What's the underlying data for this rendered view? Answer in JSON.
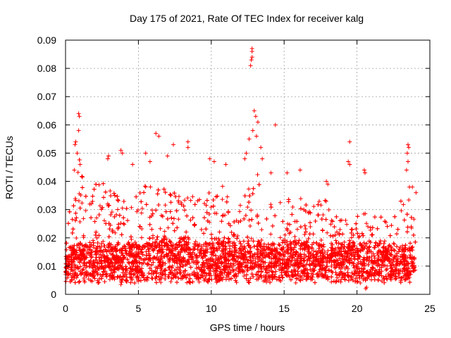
{
  "chart_data": {
    "type": "scatter",
    "title": "Day 175 of 2021, Rate Of TEC Index for receiver kalg",
    "xlabel": "GPS time / hours",
    "ylabel": "ROTI / TECUs",
    "xlim": [
      0,
      25
    ],
    "ylim": [
      0,
      0.09
    ],
    "xticks": [
      0,
      5,
      10,
      15,
      20,
      25
    ],
    "xtick_labels": [
      "0",
      "5",
      "10",
      "15",
      "20",
      "25"
    ],
    "yticks": [
      0,
      0.01,
      0.02,
      0.03,
      0.04,
      0.05,
      0.06,
      0.07,
      0.08,
      0.09
    ],
    "ytick_labels": [
      "0",
      "0.01",
      "0.02",
      "0.03",
      "0.04",
      "0.05",
      "0.06",
      "0.07",
      "0.08",
      "0.09"
    ],
    "grid": true,
    "marker": "+",
    "color": "#ff0000",
    "density_profile": [
      {
        "x": 0.0,
        "base": 0.009,
        "peak": 0.022
      },
      {
        "x": 0.5,
        "base": 0.01,
        "peak": 0.036
      },
      {
        "x": 0.9,
        "base": 0.011,
        "peak": 0.048
      },
      {
        "x": 1.5,
        "base": 0.011,
        "peak": 0.034
      },
      {
        "x": 2.5,
        "base": 0.011,
        "peak": 0.04
      },
      {
        "x": 3.5,
        "base": 0.011,
        "peak": 0.036
      },
      {
        "x": 4.5,
        "base": 0.011,
        "peak": 0.034
      },
      {
        "x": 5.5,
        "base": 0.012,
        "peak": 0.04
      },
      {
        "x": 6.5,
        "base": 0.012,
        "peak": 0.038
      },
      {
        "x": 7.5,
        "base": 0.012,
        "peak": 0.036
      },
      {
        "x": 8.5,
        "base": 0.012,
        "peak": 0.034
      },
      {
        "x": 9.5,
        "base": 0.011,
        "peak": 0.032
      },
      {
        "x": 10.5,
        "base": 0.012,
        "peak": 0.038
      },
      {
        "x": 11.5,
        "base": 0.012,
        "peak": 0.03
      },
      {
        "x": 12.5,
        "base": 0.012,
        "peak": 0.04
      },
      {
        "x": 13.0,
        "base": 0.012,
        "peak": 0.044
      },
      {
        "x": 14.0,
        "base": 0.011,
        "peak": 0.032
      },
      {
        "x": 15.0,
        "base": 0.012,
        "peak": 0.034
      },
      {
        "x": 16.0,
        "base": 0.012,
        "peak": 0.036
      },
      {
        "x": 17.0,
        "base": 0.011,
        "peak": 0.03
      },
      {
        "x": 18.0,
        "base": 0.011,
        "peak": 0.034
      },
      {
        "x": 19.0,
        "base": 0.011,
        "peak": 0.026
      },
      {
        "x": 20.0,
        "base": 0.011,
        "peak": 0.03
      },
      {
        "x": 21.0,
        "base": 0.011,
        "peak": 0.028
      },
      {
        "x": 22.0,
        "base": 0.01,
        "peak": 0.028
      },
      {
        "x": 23.0,
        "base": 0.01,
        "peak": 0.03
      },
      {
        "x": 23.6,
        "base": 0.01,
        "peak": 0.034
      },
      {
        "x": 24.0,
        "base": 0.01,
        "peak": 0.03
      }
    ],
    "notable_points": [
      {
        "x": 12.8,
        "y": 0.087
      },
      {
        "x": 12.8,
        "y": 0.086
      },
      {
        "x": 12.8,
        "y": 0.084
      },
      {
        "x": 12.75,
        "y": 0.083
      },
      {
        "x": 12.7,
        "y": 0.081
      },
      {
        "x": 12.95,
        "y": 0.065
      },
      {
        "x": 13.05,
        "y": 0.063
      },
      {
        "x": 13.2,
        "y": 0.061
      },
      {
        "x": 12.6,
        "y": 0.055
      },
      {
        "x": 12.85,
        "y": 0.058
      },
      {
        "x": 13.1,
        "y": 0.056
      },
      {
        "x": 14.4,
        "y": 0.06
      },
      {
        "x": 0.9,
        "y": 0.064
      },
      {
        "x": 0.95,
        "y": 0.063
      },
      {
        "x": 0.9,
        "y": 0.058
      },
      {
        "x": 0.7,
        "y": 0.054
      },
      {
        "x": 0.65,
        "y": 0.053
      },
      {
        "x": 0.8,
        "y": 0.05
      },
      {
        "x": 1.0,
        "y": 0.046
      },
      {
        "x": 0.6,
        "y": 0.044
      },
      {
        "x": 6.2,
        "y": 0.057
      },
      {
        "x": 6.4,
        "y": 0.056
      },
      {
        "x": 5.5,
        "y": 0.05
      },
      {
        "x": 5.8,
        "y": 0.047
      },
      {
        "x": 7.4,
        "y": 0.053
      },
      {
        "x": 8.4,
        "y": 0.054
      },
      {
        "x": 8.4,
        "y": 0.052
      },
      {
        "x": 7.0,
        "y": 0.049
      },
      {
        "x": 3.8,
        "y": 0.051
      },
      {
        "x": 3.9,
        "y": 0.05
      },
      {
        "x": 2.9,
        "y": 0.048
      },
      {
        "x": 2.95,
        "y": 0.049
      },
      {
        "x": 4.6,
        "y": 0.046
      },
      {
        "x": 9.9,
        "y": 0.048
      },
      {
        "x": 10.2,
        "y": 0.047
      },
      {
        "x": 11.0,
        "y": 0.046
      },
      {
        "x": 12.3,
        "y": 0.048
      },
      {
        "x": 12.4,
        "y": 0.05
      },
      {
        "x": 13.4,
        "y": 0.052
      },
      {
        "x": 13.5,
        "y": 0.048
      },
      {
        "x": 19.5,
        "y": 0.054
      },
      {
        "x": 19.4,
        "y": 0.047
      },
      {
        "x": 19.5,
        "y": 0.046
      },
      {
        "x": 20.5,
        "y": 0.044
      },
      {
        "x": 20.55,
        "y": 0.043
      },
      {
        "x": 23.5,
        "y": 0.053
      },
      {
        "x": 23.55,
        "y": 0.052
      },
      {
        "x": 23.45,
        "y": 0.05
      },
      {
        "x": 23.5,
        "y": 0.047
      },
      {
        "x": 23.4,
        "y": 0.044
      },
      {
        "x": 17.9,
        "y": 0.04
      },
      {
        "x": 18.0,
        "y": 0.039
      },
      {
        "x": 16.1,
        "y": 0.044
      },
      {
        "x": 15.2,
        "y": 0.043
      },
      {
        "x": 14.1,
        "y": 0.043
      },
      {
        "x": 23.8,
        "y": 0.038
      },
      {
        "x": 23.6,
        "y": 0.038
      },
      {
        "x": 20.6,
        "y": 0.002
      },
      {
        "x": 20.65,
        "y": 0.0025
      },
      {
        "x": 3.8,
        "y": 0.0035
      },
      {
        "x": 24.05,
        "y": 0.036
      }
    ]
  }
}
